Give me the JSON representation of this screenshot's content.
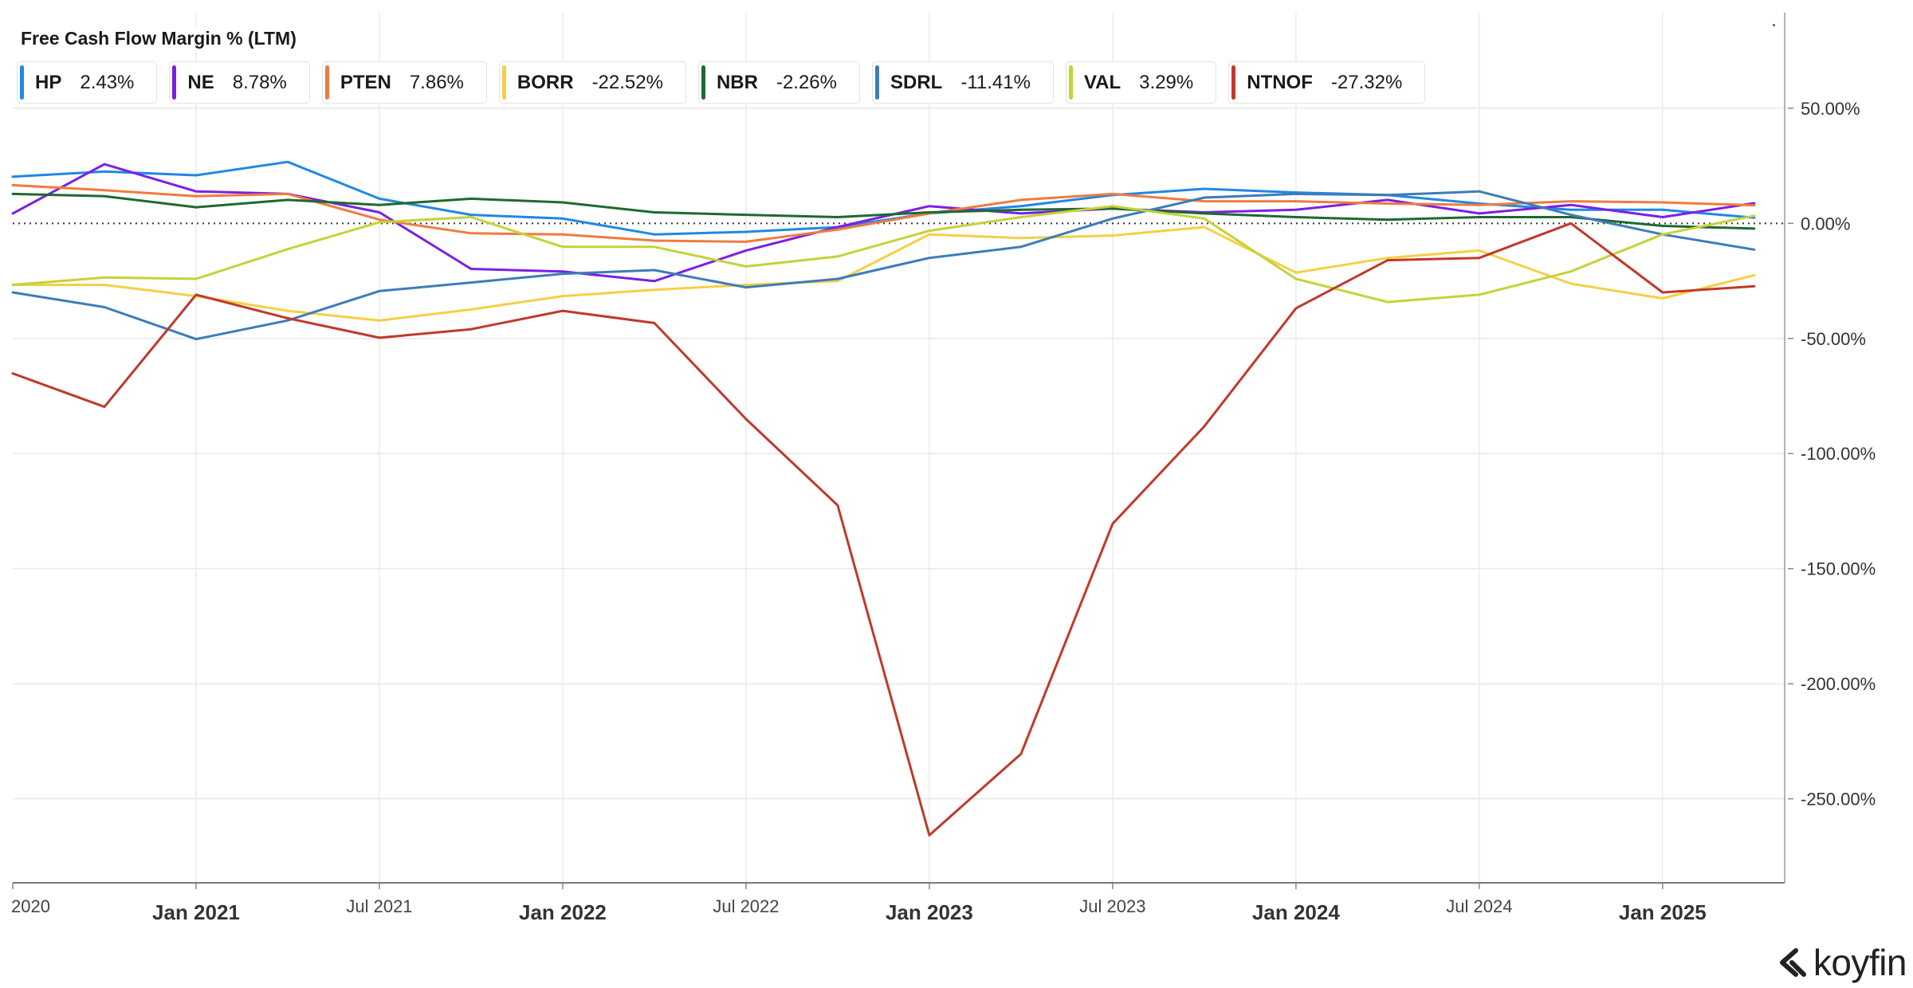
{
  "chart_data": {
    "type": "line",
    "title": "Free Cash Flow Margin % (LTM)",
    "x": [
      2020.5,
      2020.75,
      2021.0,
      2021.25,
      2021.5,
      2021.75,
      2022.0,
      2022.25,
      2022.5,
      2022.75,
      2023.0,
      2023.25,
      2023.5,
      2023.75,
      2024.0,
      2024.25,
      2024.5,
      2024.75,
      2025.0,
      2025.25
    ],
    "xlim": [
      2020.5,
      2025.333
    ],
    "ylim": [
      -286.5,
      91.5
    ],
    "xticks": [
      {
        "value": 2020.5,
        "label": "2020"
      },
      {
        "value": 2021.0,
        "label": "Jan 2021"
      },
      {
        "value": 2021.5,
        "label": "Jul 2021"
      },
      {
        "value": 2022.0,
        "label": "Jan 2022"
      },
      {
        "value": 2022.5,
        "label": "Jul 2022"
      },
      {
        "value": 2023.0,
        "label": "Jan 2023"
      },
      {
        "value": 2023.5,
        "label": "Jul 2023"
      },
      {
        "value": 2024.0,
        "label": "Jan 2024"
      },
      {
        "value": 2024.5,
        "label": "Jul 2024"
      },
      {
        "value": 2025.0,
        "label": "Jan 2025"
      }
    ],
    "yticks": [
      {
        "value": 50,
        "label": "50.00%"
      },
      {
        "value": 0,
        "label": "0.00%"
      },
      {
        "value": -50,
        "label": "-50.00%"
      },
      {
        "value": -100,
        "label": "-100.00%"
      },
      {
        "value": -150,
        "label": "-150.00%"
      },
      {
        "value": -200,
        "label": "-200.00%"
      },
      {
        "value": -250,
        "label": "-250.00%"
      }
    ],
    "series": [
      {
        "name": "HP",
        "legend_value": "2.43%",
        "color": "#1e88e5",
        "values": [
          20.3,
          22.5,
          20.9,
          26.7,
          10.7,
          3.7,
          2.1,
          -4.8,
          -3.7,
          -1.6,
          4.3,
          7.5,
          12.3,
          15.0,
          13.4,
          12.3,
          8.6,
          5.9,
          5.9,
          2.43
        ]
      },
      {
        "name": "NE",
        "legend_value": "8.78%",
        "color": "#7b1fe6",
        "values": [
          4.3,
          25.7,
          13.9,
          12.8,
          4.8,
          -19.8,
          -20.9,
          -25.1,
          -11.8,
          -1.6,
          7.5,
          4.3,
          6.4,
          4.8,
          5.9,
          10.2,
          4.3,
          8.0,
          2.7,
          8.78
        ]
      },
      {
        "name": "PTEN",
        "legend_value": "7.86%",
        "color": "#f07b3f",
        "values": [
          16.6,
          14.4,
          11.8,
          12.8,
          1.6,
          -4.3,
          -4.8,
          -7.5,
          -8.0,
          -2.7,
          4.3,
          10.2,
          12.8,
          9.6,
          9.6,
          8.6,
          8.0,
          9.6,
          9.1,
          7.86
        ]
      },
      {
        "name": "BORR",
        "legend_value": "-22.52%",
        "color": "#f6cf45",
        "values": [
          -26.7,
          -26.7,
          -31.6,
          -38.0,
          -42.2,
          -37.4,
          -31.6,
          -28.9,
          -26.7,
          -25.1,
          -4.8,
          -6.4,
          -5.3,
          -1.6,
          -21.4,
          -15.0,
          -11.8,
          -26.2,
          -32.6,
          -22.52
        ]
      },
      {
        "name": "NBR",
        "legend_value": "-2.26%",
        "color": "#1d6a2f",
        "values": [
          12.8,
          11.8,
          7.0,
          10.2,
          8.0,
          10.7,
          9.1,
          4.8,
          3.7,
          2.7,
          4.8,
          5.9,
          6.4,
          4.3,
          2.7,
          1.6,
          2.7,
          2.7,
          -1.1,
          -2.26
        ]
      },
      {
        "name": "SDRL",
        "legend_value": "-11.41%",
        "color": "#3d7cb8",
        "values": [
          -30.0,
          -36.4,
          -50.3,
          -42.2,
          -29.4,
          -25.7,
          -21.9,
          -20.3,
          -27.8,
          -24.1,
          -15.0,
          -10.2,
          2.1,
          11.2,
          12.8,
          12.3,
          13.9,
          3.7,
          -4.8,
          -11.41
        ]
      },
      {
        "name": "VAL",
        "legend_value": "3.29%",
        "color": "#c5d238",
        "values": [
          -26.7,
          -23.5,
          -24.1,
          -11.2,
          0.5,
          2.7,
          -10.2,
          -10.2,
          -18.7,
          -14.4,
          -3.2,
          2.7,
          7.5,
          2.1,
          -24.1,
          -34.2,
          -31.0,
          -20.9,
          -4.8,
          3.29
        ]
      },
      {
        "name": "NTNOF",
        "legend_value": "-27.32%",
        "color": "#c0392b",
        "values": [
          -65.2,
          -79.7,
          -31.0,
          -41.2,
          -49.7,
          -46.0,
          -38.0,
          -43.3,
          -85.0,
          -122.5,
          -265.8,
          -230.5,
          -130.5,
          -88.2,
          -36.9,
          -16.0,
          -15.0,
          0.0,
          -30.0,
          -27.32
        ]
      }
    ]
  },
  "branding": {
    "logo_text": "koyfin",
    "logo_icon": "koyfin-mark-icon"
  }
}
